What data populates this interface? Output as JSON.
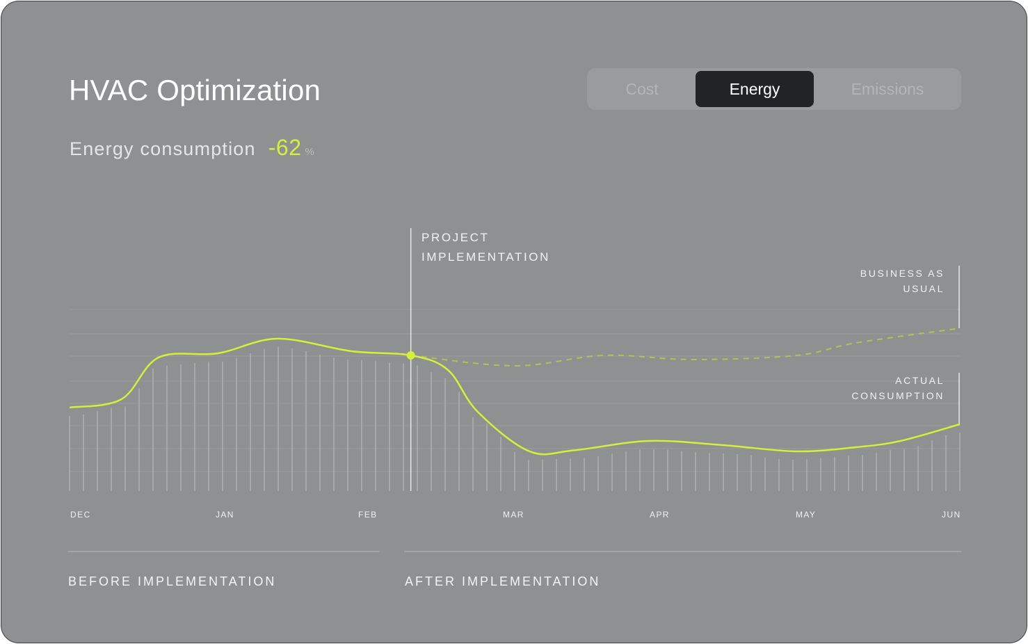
{
  "title": "HVAC Optimization",
  "tabs": [
    {
      "label": "Cost",
      "active": false
    },
    {
      "label": "Energy",
      "active": true
    },
    {
      "label": "Emissions",
      "active": false
    }
  ],
  "metric": {
    "label": "Energy consumption",
    "value": "-62",
    "unit": "%"
  },
  "annotations": {
    "project_line1": "PROJECT",
    "project_line2": "IMPLEMENTATION",
    "bau_line1": "BUSINESS AS",
    "bau_line2": "USUAL",
    "actual_line1": "ACTUAL",
    "actual_line2": "CONSUMPTION"
  },
  "phases": {
    "before": "BEFORE IMPLEMENTATION",
    "after": "AFTER IMPLEMENTATION"
  },
  "colors": {
    "accent": "#d4f03a",
    "background": "#8f9091",
    "active_tab": "#222326"
  },
  "chart_data": {
    "type": "line",
    "x_tick_labels": [
      "DEC",
      "JAN",
      "FEB",
      "MAR",
      "APR",
      "MAY",
      "JUN"
    ],
    "x_range": [
      0,
      6
    ],
    "y_range": [
      0,
      100
    ],
    "implementation_x": 2.3,
    "series": [
      {
        "name": "ACTUAL CONSUMPTION",
        "style": "solid",
        "points": [
          [
            0,
            40
          ],
          [
            0.35,
            44
          ],
          [
            0.6,
            64
          ],
          [
            1,
            66
          ],
          [
            1.4,
            73
          ],
          [
            1.9,
            67
          ],
          [
            2.3,
            65
          ],
          [
            2.55,
            58
          ],
          [
            2.75,
            38
          ],
          [
            3.1,
            19
          ],
          [
            3.4,
            19.5
          ],
          [
            3.9,
            24
          ],
          [
            4.4,
            22
          ],
          [
            4.9,
            19
          ],
          [
            5.3,
            21
          ],
          [
            5.6,
            24
          ],
          [
            6,
            32
          ]
        ]
      },
      {
        "name": "BUSINESS AS USUAL",
        "style": "dashed",
        "points": [
          [
            2.3,
            65
          ],
          [
            3.0,
            60
          ],
          [
            3.6,
            65
          ],
          [
            4.2,
            63
          ],
          [
            4.9,
            65
          ],
          [
            5.3,
            71
          ],
          [
            6,
            78
          ]
        ]
      }
    ]
  }
}
